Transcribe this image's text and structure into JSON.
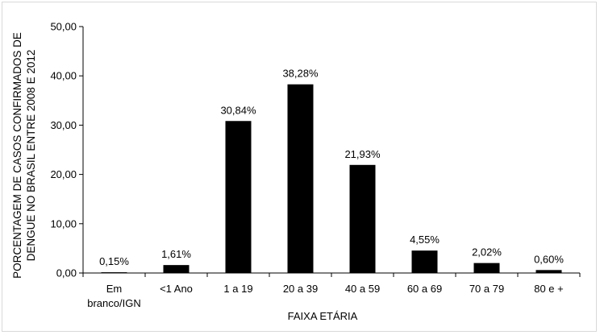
{
  "chart_data": {
    "type": "bar",
    "title": "",
    "xlabel": "FAIXA ETÁRIA",
    "ylabel_lines": [
      "PORCENTAGEM DE CASOS CONFIRMADOS DE",
      "DENGUE NO BRASIL ENTRE 2008 E 2012"
    ],
    "categories": [
      [
        "Em",
        "branco/IGN"
      ],
      [
        "<1 Ano"
      ],
      [
        "1 a 19"
      ],
      [
        "20 a 39"
      ],
      [
        "40 a 59"
      ],
      [
        "60 a 69"
      ],
      [
        "70 a 79"
      ],
      [
        "80 e +"
      ]
    ],
    "values": [
      0.15,
      1.61,
      30.84,
      38.28,
      21.93,
      4.55,
      2.02,
      0.6
    ],
    "data_labels": [
      "0,15%",
      "1,61%",
      "30,84%",
      "38,28%",
      "21,93%",
      "4,55%",
      "2,02%",
      "0,60%"
    ],
    "yticks": [
      0,
      10,
      20,
      30,
      40,
      50
    ],
    "ytick_labels": [
      "0,00",
      "10,00",
      "20,00",
      "30,00",
      "40,00",
      "50,00"
    ],
    "ylim": [
      0,
      50
    ],
    "bar_color": "#000000",
    "grid": false,
    "legend": false
  }
}
